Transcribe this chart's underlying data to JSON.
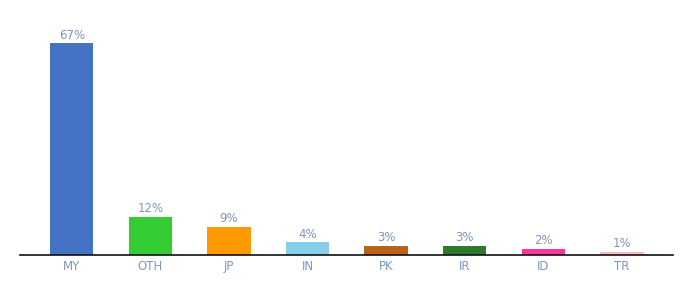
{
  "categories": [
    "MY",
    "OTH",
    "JP",
    "IN",
    "PK",
    "IR",
    "ID",
    "TR"
  ],
  "values": [
    67,
    12,
    9,
    4,
    3,
    3,
    2,
    1
  ],
  "labels": [
    "67%",
    "12%",
    "9%",
    "4%",
    "3%",
    "3%",
    "2%",
    "1%"
  ],
  "colors": [
    "#4472c4",
    "#33cc33",
    "#ff9900",
    "#87ceeb",
    "#b8621a",
    "#2d7a2d",
    "#ff3399",
    "#ffb6c1"
  ],
  "ylim": [
    0,
    74
  ],
  "background_color": "#ffffff",
  "label_color": "#7f96bc",
  "bar_label_fontsize": 8.5,
  "xlabel_fontsize": 8.5,
  "bar_width": 0.55
}
